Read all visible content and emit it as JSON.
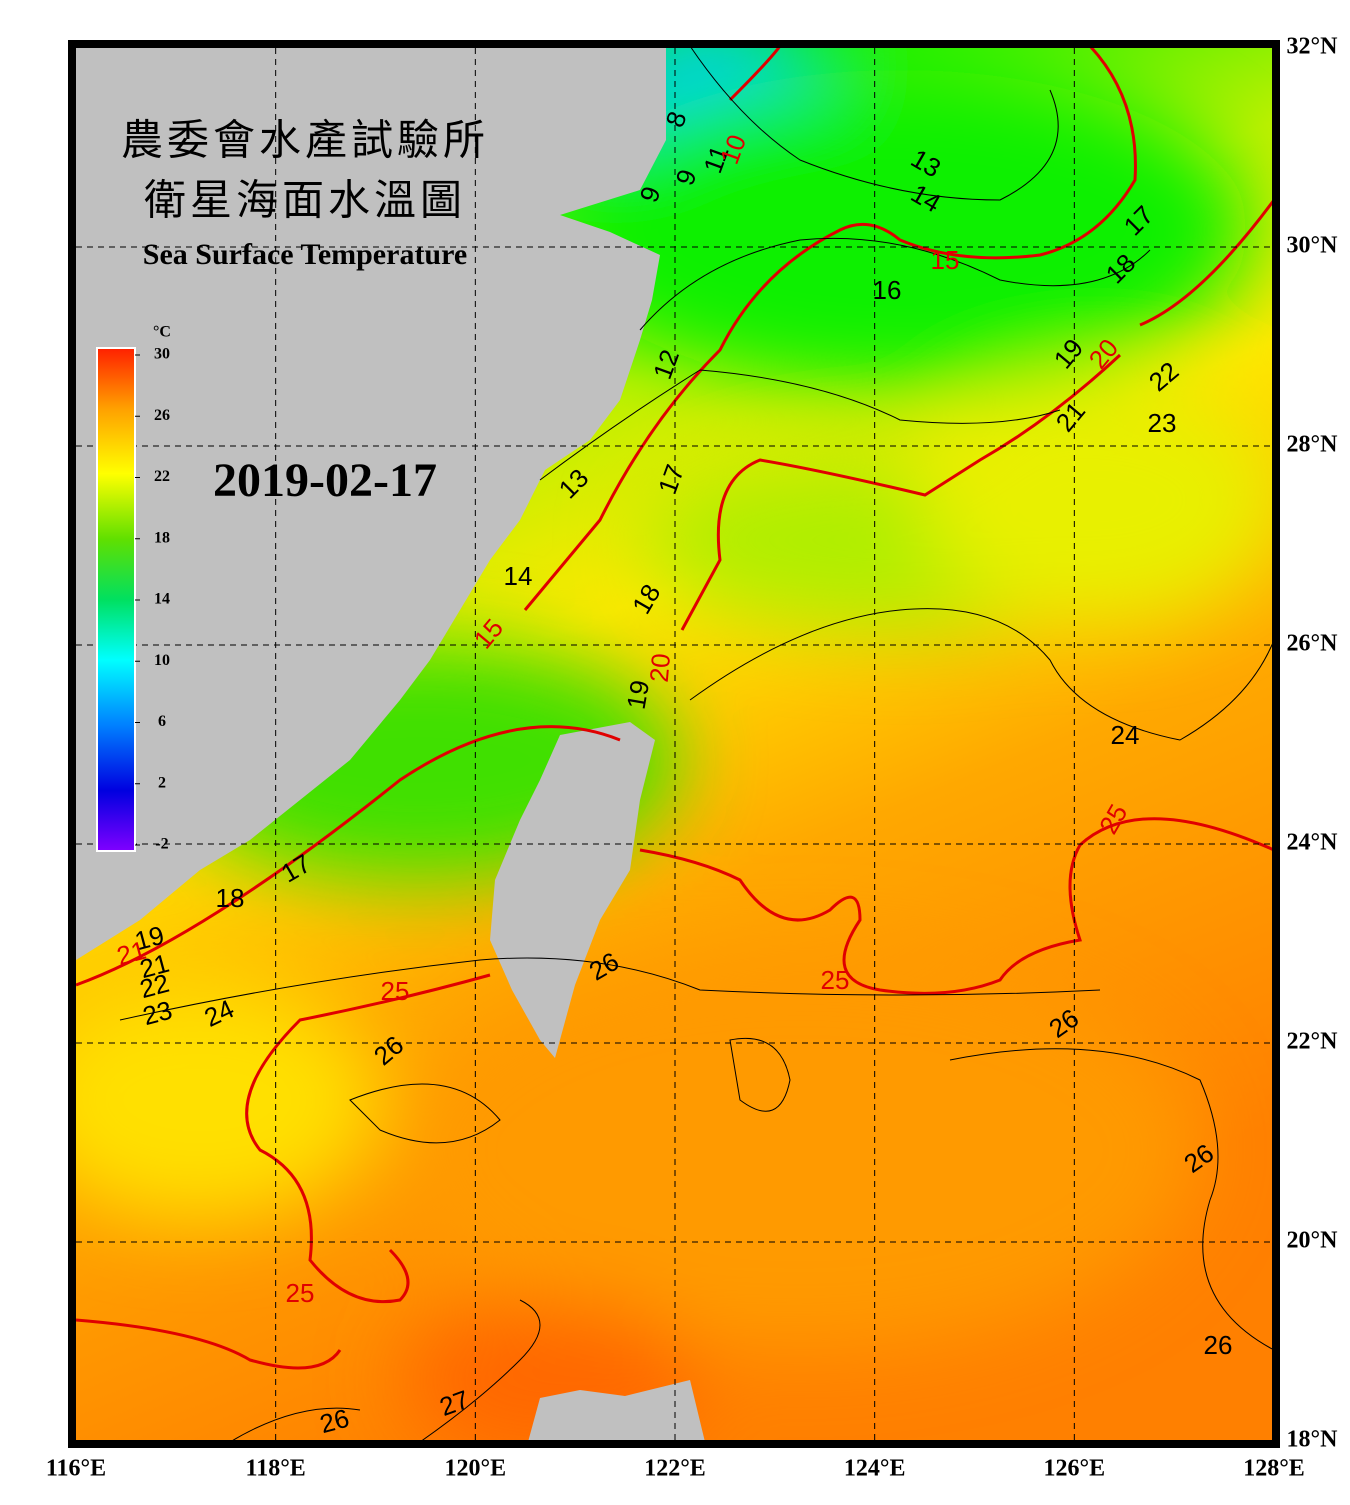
{
  "map": {
    "title_zh_1": "農委會水產試驗所",
    "title_zh_2": "衛星海面水溫圖",
    "title_en": "Sea Surface Temperature",
    "date": "2019-02-17",
    "xlim": [
      116,
      128
    ],
    "ylim": [
      18,
      32
    ],
    "xticks": [
      {
        "value": 116,
        "label": "116°E"
      },
      {
        "value": 118,
        "label": "118°E"
      },
      {
        "value": 120,
        "label": "120°E"
      },
      {
        "value": 122,
        "label": "122°E"
      },
      {
        "value": 124,
        "label": "124°E"
      },
      {
        "value": 126,
        "label": "126°E"
      },
      {
        "value": 128,
        "label": "128°E"
      }
    ],
    "yticks": [
      {
        "value": 18,
        "label": "18°N"
      },
      {
        "value": 20,
        "label": "20°N"
      },
      {
        "value": 22,
        "label": "22°N"
      },
      {
        "value": 24,
        "label": "24°N"
      },
      {
        "value": 26,
        "label": "26°N"
      },
      {
        "value": 28,
        "label": "28°N"
      },
      {
        "value": 30,
        "label": "30°N"
      },
      {
        "value": 32,
        "label": "32°N"
      }
    ],
    "grid": true,
    "colorbar": {
      "unit": "°C",
      "lim": [
        -2,
        30
      ],
      "ticks": [
        30,
        26,
        22,
        18,
        14,
        10,
        6,
        2,
        -2
      ]
    },
    "contour_labels": [
      8,
      9,
      9,
      11,
      10,
      13,
      14,
      15,
      16,
      17,
      18,
      19,
      20,
      22,
      21,
      23,
      12,
      13,
      17,
      14,
      18,
      15,
      20,
      19,
      24,
      25,
      17,
      18,
      19,
      21,
      21,
      22,
      23,
      24,
      25,
      26,
      25,
      26,
      26,
      26,
      25,
      26,
      27,
      26
    ]
  }
}
